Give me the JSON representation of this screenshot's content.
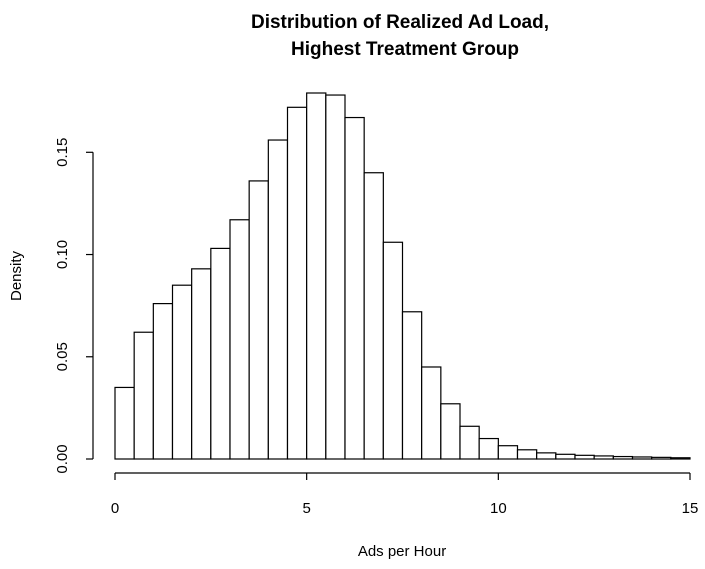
{
  "chart_data": {
    "type": "bar",
    "title_line1": "Distribution of Realized Ad Load,",
    "title_line2": "Highest Treatment Group",
    "xlabel": "Ads per Hour",
    "ylabel": "Density",
    "bin_width": 0.5,
    "xlim": [
      0,
      15
    ],
    "ylim": [
      0,
      0.179
    ],
    "x_ticks": [
      {
        "value": 0,
        "label": "0"
      },
      {
        "value": 5,
        "label": "5"
      },
      {
        "value": 10,
        "label": "10"
      },
      {
        "value": 15,
        "label": "15"
      }
    ],
    "y_ticks": [
      {
        "value": 0.0,
        "label": "0.00"
      },
      {
        "value": 0.05,
        "label": "0.05"
      },
      {
        "value": 0.1,
        "label": "0.10"
      },
      {
        "value": 0.15,
        "label": "0.15"
      }
    ],
    "bins_start": [
      0,
      0.5,
      1,
      1.5,
      2,
      2.5,
      3,
      3.5,
      4,
      4.5,
      5,
      5.5,
      6,
      6.5,
      7,
      7.5,
      8,
      8.5,
      9,
      9.5,
      10,
      10.5,
      11,
      11.5,
      12,
      12.5,
      13,
      13.5,
      14,
      14.5
    ],
    "values": [
      0.035,
      0.062,
      0.076,
      0.085,
      0.093,
      0.103,
      0.117,
      0.136,
      0.156,
      0.172,
      0.179,
      0.178,
      0.167,
      0.14,
      0.106,
      0.072,
      0.045,
      0.027,
      0.016,
      0.01,
      0.0065,
      0.0045,
      0.003,
      0.0023,
      0.0018,
      0.0015,
      0.0012,
      0.001,
      0.0008,
      0.0006
    ]
  }
}
